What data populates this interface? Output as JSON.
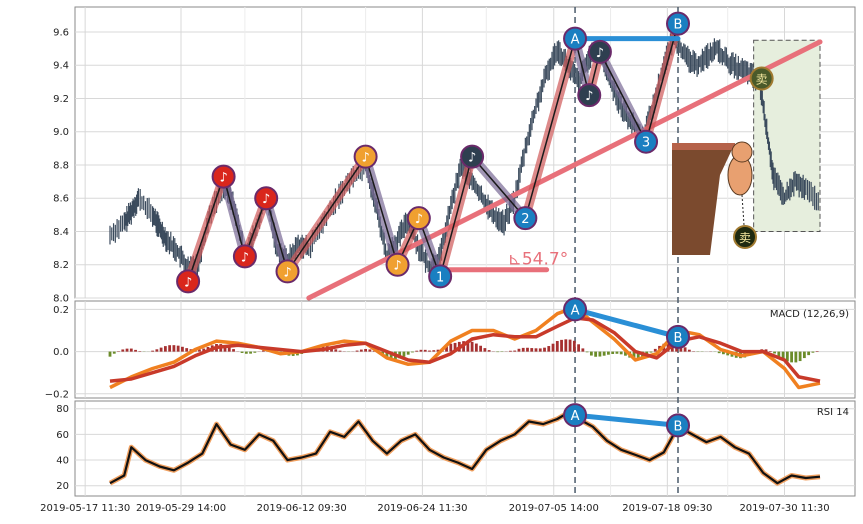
{
  "chart_data": [
    {
      "type": "line",
      "panel": "price",
      "ylim": [
        8.0,
        9.75
      ],
      "yticks": [
        8.0,
        8.2,
        8.4,
        8.6,
        8.8,
        9.0,
        9.2,
        9.4,
        9.6
      ],
      "ytick_labels": [
        "8.0",
        "8.2",
        "8.4",
        "8.6",
        "8.8",
        "9.0",
        "9.2",
        "9.4",
        "9.6"
      ],
      "grid": true,
      "price_path": [
        [
          0.0,
          8.38
        ],
        [
          0.02,
          8.45
        ],
        [
          0.03,
          8.52
        ],
        [
          0.04,
          8.6
        ],
        [
          0.06,
          8.5
        ],
        [
          0.07,
          8.42
        ],
        [
          0.08,
          8.35
        ],
        [
          0.095,
          8.28
        ],
        [
          0.11,
          8.18
        ],
        [
          0.125,
          8.22
        ],
        [
          0.14,
          8.5
        ],
        [
          0.16,
          8.68
        ],
        [
          0.175,
          8.55
        ],
        [
          0.19,
          8.25
        ],
        [
          0.205,
          8.4
        ],
        [
          0.22,
          8.62
        ],
        [
          0.235,
          8.3
        ],
        [
          0.25,
          8.22
        ],
        [
          0.265,
          8.32
        ],
        [
          0.28,
          8.3
        ],
        [
          0.3,
          8.45
        ],
        [
          0.32,
          8.6
        ],
        [
          0.34,
          8.72
        ],
        [
          0.36,
          8.8
        ],
        [
          0.375,
          8.55
        ],
        [
          0.39,
          8.25
        ],
        [
          0.405,
          8.35
        ],
        [
          0.42,
          8.47
        ],
        [
          0.435,
          8.3
        ],
        [
          0.45,
          8.18
        ],
        [
          0.465,
          8.25
        ],
        [
          0.48,
          8.55
        ],
        [
          0.495,
          8.8
        ],
        [
          0.51,
          8.7
        ],
        [
          0.525,
          8.6
        ],
        [
          0.54,
          8.5
        ],
        [
          0.555,
          8.45
        ],
        [
          0.57,
          8.6
        ],
        [
          0.585,
          8.9
        ],
        [
          0.6,
          9.15
        ],
        [
          0.615,
          9.35
        ],
        [
          0.63,
          9.5
        ],
        [
          0.645,
          9.4
        ],
        [
          0.66,
          9.3
        ],
        [
          0.675,
          9.45
        ],
        [
          0.69,
          9.48
        ],
        [
          0.705,
          9.3
        ],
        [
          0.72,
          9.15
        ],
        [
          0.735,
          9.05
        ],
        [
          0.75,
          8.96
        ],
        [
          0.765,
          9.15
        ],
        [
          0.78,
          9.4
        ],
        [
          0.795,
          9.58
        ],
        [
          0.81,
          9.45
        ],
        [
          0.825,
          9.4
        ],
        [
          0.84,
          9.45
        ],
        [
          0.855,
          9.5
        ],
        [
          0.87,
          9.42
        ],
        [
          0.885,
          9.38
        ],
        [
          0.9,
          9.35
        ],
        [
          0.915,
          9.3
        ],
        [
          0.925,
          9.0
        ],
        [
          0.935,
          8.72
        ],
        [
          0.95,
          8.6
        ],
        [
          0.965,
          8.7
        ],
        [
          0.98,
          8.65
        ],
        [
          1.0,
          8.58
        ]
      ],
      "zigzag": [
        [
          0.11,
          8.1
        ],
        [
          0.16,
          8.73
        ],
        [
          0.19,
          8.25
        ],
        [
          0.22,
          8.6
        ],
        [
          0.25,
          8.16
        ],
        [
          0.36,
          8.85
        ],
        [
          0.405,
          8.2
        ],
        [
          0.435,
          8.48
        ],
        [
          0.465,
          8.13
        ],
        [
          0.51,
          8.85
        ],
        [
          0.585,
          8.48
        ],
        [
          0.655,
          9.56
        ],
        [
          0.675,
          9.22
        ],
        [
          0.69,
          9.48
        ],
        [
          0.755,
          8.94
        ],
        [
          0.8,
          9.65
        ]
      ],
      "zigzag_up_color": "#d05a5a",
      "zigzag_down_color": "#7a6b96",
      "markers": [
        {
          "x": 0.11,
          "y": 8.1,
          "label": "♪",
          "color": "#d9261c"
        },
        {
          "x": 0.16,
          "y": 8.73,
          "label": "♪",
          "color": "#d9261c"
        },
        {
          "x": 0.19,
          "y": 8.25,
          "label": "♪",
          "color": "#d9261c"
        },
        {
          "x": 0.22,
          "y": 8.6,
          "label": "♪",
          "color": "#d9261c"
        },
        {
          "x": 0.25,
          "y": 8.16,
          "label": "♪",
          "color": "#f0a030"
        },
        {
          "x": 0.36,
          "y": 8.85,
          "label": "♪",
          "color": "#f0a030"
        },
        {
          "x": 0.405,
          "y": 8.2,
          "label": "♪",
          "color": "#f0a030"
        },
        {
          "x": 0.435,
          "y": 8.48,
          "label": "♪",
          "color": "#f0a030"
        },
        {
          "x": 0.465,
          "y": 8.13,
          "label": "1",
          "color": "#1a7fc1"
        },
        {
          "x": 0.51,
          "y": 8.85,
          "label": "♪",
          "color": "#2e3f50"
        },
        {
          "x": 0.585,
          "y": 8.48,
          "label": "2",
          "color": "#1a7fc1"
        },
        {
          "x": 0.655,
          "y": 9.56,
          "label": "A",
          "color": "#1a7fc1"
        },
        {
          "x": 0.675,
          "y": 9.22,
          "label": "♪",
          "color": "#2e3f50"
        },
        {
          "x": 0.69,
          "y": 9.48,
          "label": "♪",
          "color": "#2e3f50"
        },
        {
          "x": 0.755,
          "y": 8.94,
          "label": "3",
          "color": "#1a7fc1"
        },
        {
          "x": 0.8,
          "y": 9.65,
          "label": "B",
          "color": "#1a7fc1"
        }
      ],
      "divergence_line": {
        "from": [
          0.655,
          9.56
        ],
        "to": [
          0.8,
          9.56
        ],
        "color": "#2a8fd6"
      },
      "trendline": {
        "from": [
          0.28,
          8.0
        ],
        "to": [
          1.0,
          9.54
        ],
        "color": "#e8707a"
      },
      "baseline": {
        "from": [
          0.465,
          8.17
        ],
        "to": [
          0.615,
          8.17
        ],
        "color": "#e8707a"
      },
      "angle_label": "⊾54.7°",
      "sell_box": {
        "x0": 0.915,
        "x1": 1.0,
        "y0": 8.4,
        "y1": 9.55,
        "label": "卖",
        "bottom_label": "卖"
      },
      "vlines": [
        0.655,
        0.8
      ]
    },
    {
      "type": "line",
      "panel": "macd",
      "legend": "MACD (12,26,9)",
      "ylim": [
        -0.22,
        0.24
      ],
      "yticks": [
        -0.2,
        0.0,
        0.2
      ],
      "ytick_labels": [
        "−0.2",
        "0.0",
        "0.2"
      ],
      "series": [
        {
          "color": "#f08020",
          "values": [
            [
              0.0,
              -0.17
            ],
            [
              0.03,
              -0.12
            ],
            [
              0.06,
              -0.08
            ],
            [
              0.09,
              -0.05
            ],
            [
              0.12,
              0.01
            ],
            [
              0.15,
              0.05
            ],
            [
              0.18,
              0.04
            ],
            [
              0.21,
              0.02
            ],
            [
              0.24,
              -0.01
            ],
            [
              0.27,
              0.0
            ],
            [
              0.3,
              0.03
            ],
            [
              0.33,
              0.05
            ],
            [
              0.36,
              0.04
            ],
            [
              0.39,
              -0.03
            ],
            [
              0.42,
              -0.06
            ],
            [
              0.45,
              -0.05
            ],
            [
              0.48,
              0.05
            ],
            [
              0.51,
              0.1
            ],
            [
              0.54,
              0.1
            ],
            [
              0.57,
              0.06
            ],
            [
              0.6,
              0.1
            ],
            [
              0.63,
              0.18
            ],
            [
              0.655,
              0.21
            ],
            [
              0.68,
              0.14
            ],
            [
              0.71,
              0.06
            ],
            [
              0.74,
              -0.04
            ],
            [
              0.77,
              -0.01
            ],
            [
              0.8,
              0.1
            ],
            [
              0.83,
              0.08
            ],
            [
              0.86,
              0.01
            ],
            [
              0.89,
              -0.02
            ],
            [
              0.92,
              0.0
            ],
            [
              0.95,
              -0.08
            ],
            [
              0.97,
              -0.17
            ],
            [
              1.0,
              -0.15
            ]
          ]
        },
        {
          "color": "#c83a2a",
          "values": [
            [
              0.0,
              -0.14
            ],
            [
              0.03,
              -0.13
            ],
            [
              0.06,
              -0.1
            ],
            [
              0.09,
              -0.07
            ],
            [
              0.12,
              -0.02
            ],
            [
              0.15,
              0.02
            ],
            [
              0.18,
              0.03
            ],
            [
              0.21,
              0.02
            ],
            [
              0.24,
              0.01
            ],
            [
              0.27,
              0.0
            ],
            [
              0.3,
              0.01
            ],
            [
              0.33,
              0.03
            ],
            [
              0.36,
              0.04
            ],
            [
              0.39,
              0.0
            ],
            [
              0.42,
              -0.04
            ],
            [
              0.45,
              -0.05
            ],
            [
              0.48,
              -0.01
            ],
            [
              0.51,
              0.06
            ],
            [
              0.54,
              0.08
            ],
            [
              0.57,
              0.07
            ],
            [
              0.6,
              0.07
            ],
            [
              0.63,
              0.12
            ],
            [
              0.655,
              0.16
            ],
            [
              0.68,
              0.15
            ],
            [
              0.71,
              0.09
            ],
            [
              0.74,
              0.0
            ],
            [
              0.77,
              -0.03
            ],
            [
              0.8,
              0.05
            ],
            [
              0.83,
              0.07
            ],
            [
              0.86,
              0.04
            ],
            [
              0.89,
              0.0
            ],
            [
              0.92,
              0.0
            ],
            [
              0.95,
              -0.04
            ],
            [
              0.97,
              -0.12
            ],
            [
              1.0,
              -0.14
            ]
          ]
        }
      ],
      "divergence_line": {
        "from": [
          0.655,
          0.2
        ],
        "to": [
          0.8,
          0.07
        ],
        "color": "#2a8fd6"
      },
      "markers": [
        {
          "x": 0.655,
          "y": 0.2,
          "label": "A",
          "color": "#1a7fc1"
        },
        {
          "x": 0.8,
          "y": 0.07,
          "label": "B",
          "color": "#1a7fc1"
        }
      ],
      "hist_pos_color": "#a63030",
      "hist_neg_color": "#6b8c2a"
    },
    {
      "type": "line",
      "panel": "rsi",
      "legend": "RSI 14",
      "ylim": [
        12,
        86
      ],
      "yticks": [
        20,
        40,
        60,
        80
      ],
      "ytick_labels": [
        "20",
        "40",
        "60",
        "80"
      ],
      "series": [
        {
          "color": "#111111",
          "halo": "#f0a060",
          "values": [
            [
              0.0,
              22
            ],
            [
              0.02,
              28
            ],
            [
              0.03,
              50
            ],
            [
              0.05,
              40
            ],
            [
              0.07,
              35
            ],
            [
              0.09,
              32
            ],
            [
              0.11,
              38
            ],
            [
              0.13,
              45
            ],
            [
              0.15,
              68
            ],
            [
              0.17,
              52
            ],
            [
              0.19,
              48
            ],
            [
              0.21,
              60
            ],
            [
              0.23,
              55
            ],
            [
              0.25,
              40
            ],
            [
              0.27,
              42
            ],
            [
              0.29,
              45
            ],
            [
              0.31,
              62
            ],
            [
              0.33,
              58
            ],
            [
              0.35,
              70
            ],
            [
              0.37,
              55
            ],
            [
              0.39,
              45
            ],
            [
              0.41,
              55
            ],
            [
              0.43,
              60
            ],
            [
              0.45,
              48
            ],
            [
              0.47,
              42
            ],
            [
              0.49,
              38
            ],
            [
              0.51,
              33
            ],
            [
              0.53,
              48
            ],
            [
              0.55,
              55
            ],
            [
              0.57,
              60
            ],
            [
              0.59,
              70
            ],
            [
              0.61,
              68
            ],
            [
              0.63,
              72
            ],
            [
              0.655,
              80
            ],
            [
              0.66,
              72
            ],
            [
              0.68,
              66
            ],
            [
              0.7,
              55
            ],
            [
              0.72,
              48
            ],
            [
              0.74,
              44
            ],
            [
              0.76,
              40
            ],
            [
              0.78,
              46
            ],
            [
              0.8,
              66
            ],
            [
              0.82,
              60
            ],
            [
              0.84,
              54
            ],
            [
              0.86,
              58
            ],
            [
              0.88,
              50
            ],
            [
              0.9,
              45
            ],
            [
              0.92,
              30
            ],
            [
              0.94,
              22
            ],
            [
              0.96,
              28
            ],
            [
              0.98,
              26
            ],
            [
              1.0,
              27
            ]
          ]
        }
      ],
      "divergence_line": {
        "from": [
          0.655,
          75
        ],
        "to": [
          0.8,
          67
        ],
        "color": "#2a8fd6"
      },
      "markers": [
        {
          "x": 0.655,
          "y": 75,
          "label": "A",
          "color": "#1a7fc1"
        },
        {
          "x": 0.8,
          "y": 67,
          "label": "B",
          "color": "#1a7fc1"
        }
      ]
    }
  ],
  "x_axis": {
    "tick_labels": [
      "2019-05-17 11:30",
      "2019-05-29 14:00",
      "2019-06-12 09:30",
      "2019-06-24 11:30",
      "2019-07-05 14:00",
      "2019-07-18 09:30",
      "2019-07-30 11:30"
    ]
  },
  "colors": {
    "grid": "#d8d8d8",
    "axis": "#8a8a8a",
    "dashed_vline": "#4a5a6a",
    "candle": "#3a4a5c",
    "sell_box_fill": "#e6eedd"
  }
}
